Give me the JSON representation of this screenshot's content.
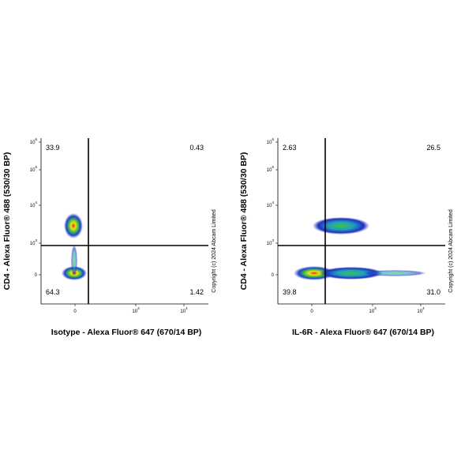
{
  "panels": [
    {
      "y_label": "CD4 - Alexa Fluor® 488 (530/30 BP)",
      "x_label": "Isotype - Alexa Fluor® 647 (670/14 BP)",
      "quadrants": {
        "top_left": "33.9",
        "top_right": "0.43",
        "bottom_left": "64.3",
        "bottom_right": "1.42"
      },
      "copyright": "Copyright (c) 2024 Abcam Limited"
    },
    {
      "y_label": "CD4 - Alexa Fluor® 488 (530/30 BP)",
      "x_label": "IL-6R - Alexa Fluor® 647 (670/14 BP)",
      "quadrants": {
        "top_left": "2.63",
        "top_right": "26.5",
        "bottom_left": "39.8",
        "bottom_right": "31.0"
      },
      "copyright": "Copyright (c) 2024 Abcam Limited"
    }
  ],
  "yticks": [
    {
      "base": "0"
    },
    {
      "base": "10",
      "exp": "3"
    },
    {
      "base": "10",
      "exp": "4"
    },
    {
      "base": "10",
      "exp": "5"
    },
    {
      "base": "10",
      "exp": "6"
    }
  ],
  "xticks": [
    {
      "base": "0"
    },
    {
      "base": "10",
      "exp": "3"
    },
    {
      "base": "10",
      "exp": "4"
    }
  ]
}
